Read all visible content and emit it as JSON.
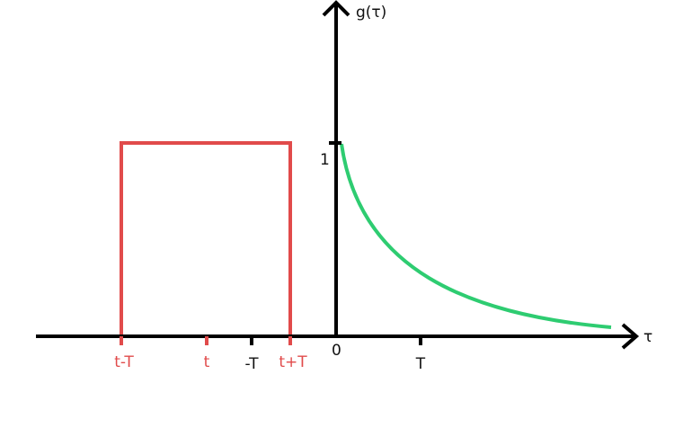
{
  "diagram": {
    "y_axis_label": "g(τ)",
    "x_axis_label": "τ",
    "y_tick_label": "1",
    "origin_label": "0",
    "x_ticks": {
      "t_minus_T": "t-T",
      "t": "t",
      "minus_T": "-T",
      "t_plus_T": "t+T",
      "T": "T"
    },
    "colors": {
      "axis": "#000000",
      "window": "#e14b4b",
      "decay_curve": "#2ecc71"
    }
  }
}
